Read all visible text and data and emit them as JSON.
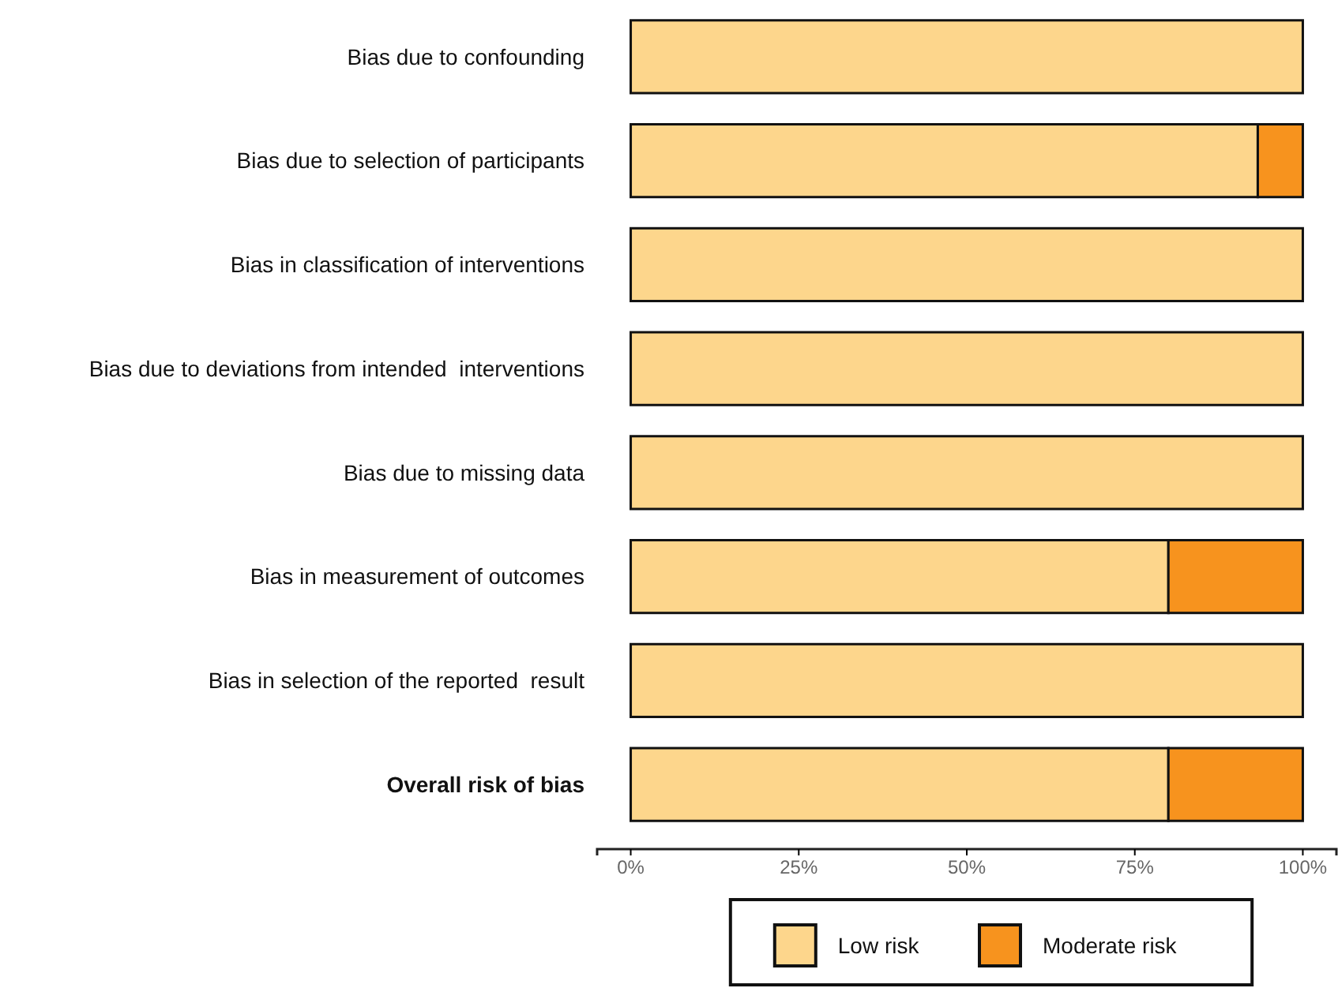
{
  "chart_data": {
    "type": "bar",
    "orientation": "horizontal",
    "stacked": true,
    "categories": [
      "Bias due to confounding",
      "Bias due to selection of participants",
      "Bias in classification of interventions",
      "Bias due to deviations from intended  interventions",
      "Bias due to missing data",
      "Bias in measurement of outcomes",
      "Bias in selection of the reported  result",
      "Overall risk of bias"
    ],
    "series": [
      {
        "name": "Low risk",
        "color": "#fdd68c",
        "values": [
          100,
          93.3,
          100,
          100,
          100,
          80,
          100,
          80
        ]
      },
      {
        "name": "Moderate risk",
        "color": "#f7931e",
        "values": [
          0,
          6.7,
          0,
          0,
          0,
          20,
          0,
          20
        ]
      }
    ],
    "xlim": [
      -5,
      105
    ],
    "xticks": [
      {
        "value": 0,
        "label": "0%"
      },
      {
        "value": 25,
        "label": "25%"
      },
      {
        "value": 50,
        "label": "50%"
      },
      {
        "value": 75,
        "label": "75%"
      },
      {
        "value": 100,
        "label": "100%"
      }
    ],
    "legend": "bottom"
  }
}
